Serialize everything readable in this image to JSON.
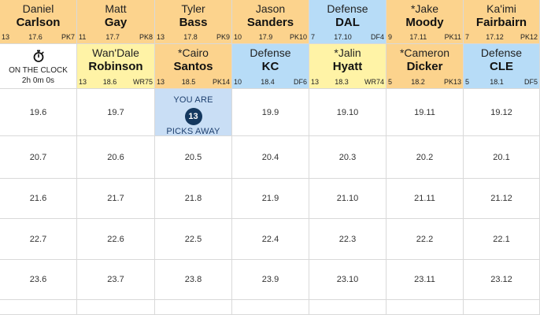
{
  "board": {
    "row1": [
      {
        "first": "Daniel",
        "last": "Carlson",
        "bye": "13",
        "adp": "17.6",
        "pos": "PK7",
        "pos_group": "PK"
      },
      {
        "first": "Matt",
        "last": "Gay",
        "bye": "11",
        "adp": "17.7",
        "pos": "PK8",
        "pos_group": "PK"
      },
      {
        "first": "Tyler",
        "last": "Bass",
        "bye": "13",
        "adp": "17.8",
        "pos": "PK9",
        "pos_group": "PK"
      },
      {
        "first": "Jason",
        "last": "Sanders",
        "bye": "10",
        "adp": "17.9",
        "pos": "PK10",
        "pos_group": "PK"
      },
      {
        "first": "Defense",
        "last": "DAL",
        "bye": "7",
        "adp": "17.10",
        "pos": "DF4",
        "pos_group": "DF"
      },
      {
        "first": "*Jake",
        "last": "Moody",
        "bye": "9",
        "adp": "17.11",
        "pos": "PK11",
        "pos_group": "PK"
      },
      {
        "first": "Ka'imi",
        "last": "Fairbairn",
        "bye": "7",
        "adp": "17.12",
        "pos": "PK12",
        "pos_group": "PK"
      }
    ],
    "clock": {
      "label": "ON THE CLOCK",
      "timer": "2h 0m 0s",
      "icon": "stopwatch-icon"
    },
    "row2": [
      {
        "first": "Wan'Dale",
        "last": "Robinson",
        "bye": "13",
        "adp": "18.6",
        "pos": "WR75",
        "pos_group": "WR"
      },
      {
        "first": "*Cairo",
        "last": "Santos",
        "bye": "13",
        "adp": "18.5",
        "pos": "PK14",
        "pos_group": "PK"
      },
      {
        "first": "Defense",
        "last": "KC",
        "bye": "10",
        "adp": "18.4",
        "pos": "DF6",
        "pos_group": "DF"
      },
      {
        "first": "*Jalin",
        "last": "Hyatt",
        "bye": "13",
        "adp": "18.3",
        "pos": "WR74",
        "pos_group": "WR"
      },
      {
        "first": "*Cameron",
        "last": "Dicker",
        "bye": "5",
        "adp": "18.2",
        "pos": "PK13",
        "pos_group": "PK"
      },
      {
        "first": "Defense",
        "last": "CLE",
        "bye": "5",
        "adp": "18.1",
        "pos": "DF5",
        "pos_group": "DF"
      }
    ],
    "away": {
      "line1": "YOU ARE",
      "count": "13",
      "line2": "PICKS AWAY"
    },
    "empty_rows": [
      [
        "19.6",
        "19.7",
        null,
        "19.9",
        "19.10",
        "19.11",
        "19.12"
      ],
      [
        "20.7",
        "20.6",
        "20.5",
        "20.4",
        "20.3",
        "20.2",
        "20.1"
      ],
      [
        "21.6",
        "21.7",
        "21.8",
        "21.9",
        "21.10",
        "21.11",
        "21.12"
      ],
      [
        "22.7",
        "22.6",
        "22.5",
        "22.4",
        "22.3",
        "22.2",
        "22.1"
      ],
      [
        "23.6",
        "23.7",
        "23.8",
        "23.9",
        "23.10",
        "23.11",
        "23.12"
      ],
      [
        "",
        "",
        "",
        "",
        "",
        "",
        ""
      ]
    ]
  },
  "colors": {
    "kicker": "#fcd38d",
    "wide_receiver": "#fff3a6",
    "defense": "#b7dcf7",
    "picks_away_bg": "#c9def5",
    "badge": "#14385f"
  }
}
